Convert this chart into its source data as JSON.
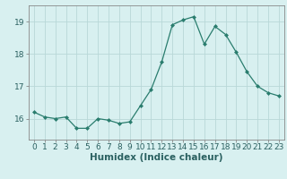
{
  "x": [
    0,
    1,
    2,
    3,
    4,
    5,
    6,
    7,
    8,
    9,
    10,
    11,
    12,
    13,
    14,
    15,
    16,
    17,
    18,
    19,
    20,
    21,
    22,
    23
  ],
  "y": [
    16.2,
    16.05,
    16.0,
    16.05,
    15.7,
    15.7,
    16.0,
    15.95,
    15.85,
    15.9,
    16.4,
    16.9,
    17.75,
    18.9,
    19.05,
    19.15,
    18.3,
    18.85,
    18.6,
    18.05,
    17.45,
    17.0,
    16.8,
    16.7
  ],
  "line_color": "#2a7d6e",
  "marker": "D",
  "marker_size": 2.0,
  "bg_color": "#d8f0f0",
  "grid_color": "#b8d8d8",
  "xlabel": "Humidex (Indice chaleur)",
  "xlabel_fontsize": 7.5,
  "tick_fontsize": 6.5,
  "yticks": [
    16,
    17,
    18,
    19
  ],
  "ylim": [
    15.35,
    19.5
  ],
  "xlim": [
    -0.5,
    23.5
  ]
}
